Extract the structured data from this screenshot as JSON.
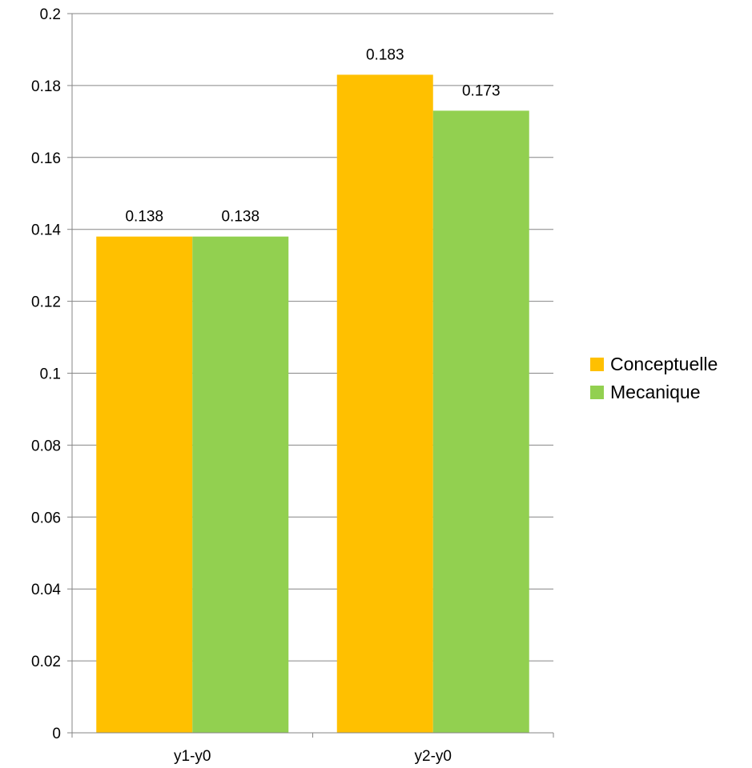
{
  "chart_data": {
    "type": "bar",
    "title": "",
    "xlabel": "",
    "ylabel": "",
    "categories": [
      "y1-y0",
      "y2-y0"
    ],
    "series": [
      {
        "name": "Conceptuelle",
        "values": [
          0.138,
          0.183
        ],
        "color": "#FFC000",
        "labels": [
          "0.138",
          "0.183"
        ]
      },
      {
        "name": "Mecanique",
        "values": [
          0.138,
          0.173
        ],
        "color": "#92D050",
        "labels": [
          "0.138",
          "0.173"
        ]
      }
    ],
    "ylim": [
      0,
      0.2
    ],
    "yticks": [
      0,
      0.02,
      0.04,
      0.06,
      0.08,
      0.1,
      0.12,
      0.14,
      0.16,
      0.18,
      0.2
    ],
    "ytick_labels": [
      "0",
      "0.02",
      "0.04",
      "0.06",
      "0.08",
      "0.1",
      "0.12",
      "0.14",
      "0.16",
      "0.18",
      "0.2"
    ],
    "grid": true,
    "legend_position": "right"
  }
}
